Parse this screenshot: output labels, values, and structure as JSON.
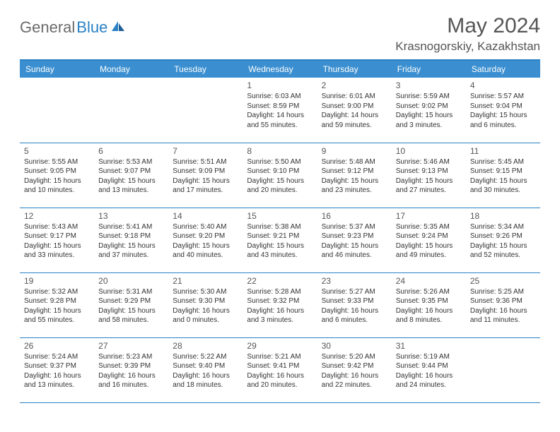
{
  "logo": {
    "general": "General",
    "blue": "Blue"
  },
  "title": "May 2024",
  "location": "Krasnogorskiy, Kazakhstan",
  "colors": {
    "header_bg": "#3b8fd0",
    "header_text": "#ffffff",
    "border": "#2a81c4",
    "text": "#333333",
    "title_text": "#555555"
  },
  "weekdays": [
    "Sunday",
    "Monday",
    "Tuesday",
    "Wednesday",
    "Thursday",
    "Friday",
    "Saturday"
  ],
  "weeks": [
    [
      {
        "day": "",
        "sunrise": "",
        "sunset": "",
        "daylight": ""
      },
      {
        "day": "",
        "sunrise": "",
        "sunset": "",
        "daylight": ""
      },
      {
        "day": "",
        "sunrise": "",
        "sunset": "",
        "daylight": ""
      },
      {
        "day": "1",
        "sunrise": "Sunrise: 6:03 AM",
        "sunset": "Sunset: 8:59 PM",
        "daylight": "Daylight: 14 hours and 55 minutes."
      },
      {
        "day": "2",
        "sunrise": "Sunrise: 6:01 AM",
        "sunset": "Sunset: 9:00 PM",
        "daylight": "Daylight: 14 hours and 59 minutes."
      },
      {
        "day": "3",
        "sunrise": "Sunrise: 5:59 AM",
        "sunset": "Sunset: 9:02 PM",
        "daylight": "Daylight: 15 hours and 3 minutes."
      },
      {
        "day": "4",
        "sunrise": "Sunrise: 5:57 AM",
        "sunset": "Sunset: 9:04 PM",
        "daylight": "Daylight: 15 hours and 6 minutes."
      }
    ],
    [
      {
        "day": "5",
        "sunrise": "Sunrise: 5:55 AM",
        "sunset": "Sunset: 9:05 PM",
        "daylight": "Daylight: 15 hours and 10 minutes."
      },
      {
        "day": "6",
        "sunrise": "Sunrise: 5:53 AM",
        "sunset": "Sunset: 9:07 PM",
        "daylight": "Daylight: 15 hours and 13 minutes."
      },
      {
        "day": "7",
        "sunrise": "Sunrise: 5:51 AM",
        "sunset": "Sunset: 9:09 PM",
        "daylight": "Daylight: 15 hours and 17 minutes."
      },
      {
        "day": "8",
        "sunrise": "Sunrise: 5:50 AM",
        "sunset": "Sunset: 9:10 PM",
        "daylight": "Daylight: 15 hours and 20 minutes."
      },
      {
        "day": "9",
        "sunrise": "Sunrise: 5:48 AM",
        "sunset": "Sunset: 9:12 PM",
        "daylight": "Daylight: 15 hours and 23 minutes."
      },
      {
        "day": "10",
        "sunrise": "Sunrise: 5:46 AM",
        "sunset": "Sunset: 9:13 PM",
        "daylight": "Daylight: 15 hours and 27 minutes."
      },
      {
        "day": "11",
        "sunrise": "Sunrise: 5:45 AM",
        "sunset": "Sunset: 9:15 PM",
        "daylight": "Daylight: 15 hours and 30 minutes."
      }
    ],
    [
      {
        "day": "12",
        "sunrise": "Sunrise: 5:43 AM",
        "sunset": "Sunset: 9:17 PM",
        "daylight": "Daylight: 15 hours and 33 minutes."
      },
      {
        "day": "13",
        "sunrise": "Sunrise: 5:41 AM",
        "sunset": "Sunset: 9:18 PM",
        "daylight": "Daylight: 15 hours and 37 minutes."
      },
      {
        "day": "14",
        "sunrise": "Sunrise: 5:40 AM",
        "sunset": "Sunset: 9:20 PM",
        "daylight": "Daylight: 15 hours and 40 minutes."
      },
      {
        "day": "15",
        "sunrise": "Sunrise: 5:38 AM",
        "sunset": "Sunset: 9:21 PM",
        "daylight": "Daylight: 15 hours and 43 minutes."
      },
      {
        "day": "16",
        "sunrise": "Sunrise: 5:37 AM",
        "sunset": "Sunset: 9:23 PM",
        "daylight": "Daylight: 15 hours and 46 minutes."
      },
      {
        "day": "17",
        "sunrise": "Sunrise: 5:35 AM",
        "sunset": "Sunset: 9:24 PM",
        "daylight": "Daylight: 15 hours and 49 minutes."
      },
      {
        "day": "18",
        "sunrise": "Sunrise: 5:34 AM",
        "sunset": "Sunset: 9:26 PM",
        "daylight": "Daylight: 15 hours and 52 minutes."
      }
    ],
    [
      {
        "day": "19",
        "sunrise": "Sunrise: 5:32 AM",
        "sunset": "Sunset: 9:28 PM",
        "daylight": "Daylight: 15 hours and 55 minutes."
      },
      {
        "day": "20",
        "sunrise": "Sunrise: 5:31 AM",
        "sunset": "Sunset: 9:29 PM",
        "daylight": "Daylight: 15 hours and 58 minutes."
      },
      {
        "day": "21",
        "sunrise": "Sunrise: 5:30 AM",
        "sunset": "Sunset: 9:30 PM",
        "daylight": "Daylight: 16 hours and 0 minutes."
      },
      {
        "day": "22",
        "sunrise": "Sunrise: 5:28 AM",
        "sunset": "Sunset: 9:32 PM",
        "daylight": "Daylight: 16 hours and 3 minutes."
      },
      {
        "day": "23",
        "sunrise": "Sunrise: 5:27 AM",
        "sunset": "Sunset: 9:33 PM",
        "daylight": "Daylight: 16 hours and 6 minutes."
      },
      {
        "day": "24",
        "sunrise": "Sunrise: 5:26 AM",
        "sunset": "Sunset: 9:35 PM",
        "daylight": "Daylight: 16 hours and 8 minutes."
      },
      {
        "day": "25",
        "sunrise": "Sunrise: 5:25 AM",
        "sunset": "Sunset: 9:36 PM",
        "daylight": "Daylight: 16 hours and 11 minutes."
      }
    ],
    [
      {
        "day": "26",
        "sunrise": "Sunrise: 5:24 AM",
        "sunset": "Sunset: 9:37 PM",
        "daylight": "Daylight: 16 hours and 13 minutes."
      },
      {
        "day": "27",
        "sunrise": "Sunrise: 5:23 AM",
        "sunset": "Sunset: 9:39 PM",
        "daylight": "Daylight: 16 hours and 16 minutes."
      },
      {
        "day": "28",
        "sunrise": "Sunrise: 5:22 AM",
        "sunset": "Sunset: 9:40 PM",
        "daylight": "Daylight: 16 hours and 18 minutes."
      },
      {
        "day": "29",
        "sunrise": "Sunrise: 5:21 AM",
        "sunset": "Sunset: 9:41 PM",
        "daylight": "Daylight: 16 hours and 20 minutes."
      },
      {
        "day": "30",
        "sunrise": "Sunrise: 5:20 AM",
        "sunset": "Sunset: 9:42 PM",
        "daylight": "Daylight: 16 hours and 22 minutes."
      },
      {
        "day": "31",
        "sunrise": "Sunrise: 5:19 AM",
        "sunset": "Sunset: 9:44 PM",
        "daylight": "Daylight: 16 hours and 24 minutes."
      },
      {
        "day": "",
        "sunrise": "",
        "sunset": "",
        "daylight": ""
      }
    ]
  ]
}
